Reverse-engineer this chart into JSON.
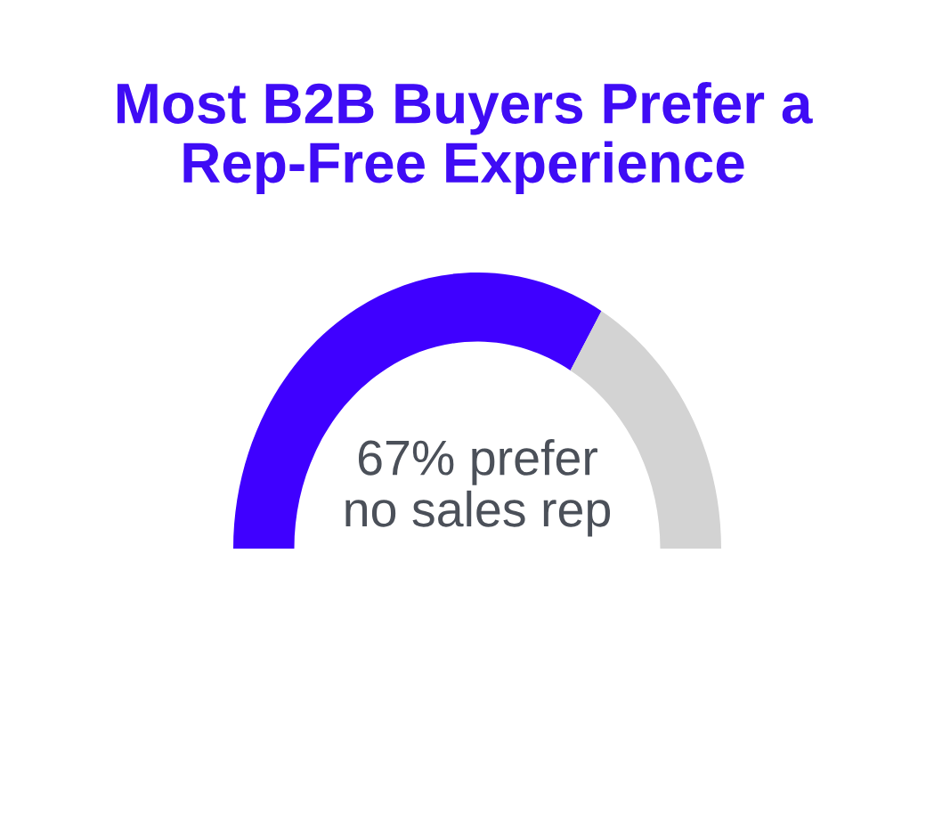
{
  "chart_data": {
    "type": "donut",
    "title": "Most B2B Buyers Prefer a Rep-Free Experience",
    "categories": [
      null,
      null
    ],
    "values": [
      67,
      33
    ],
    "colors": [
      "#3f00ff",
      "#d3d3d3"
    ],
    "annotations": [
      "67% prefer\nno sales rep"
    ]
  }
}
